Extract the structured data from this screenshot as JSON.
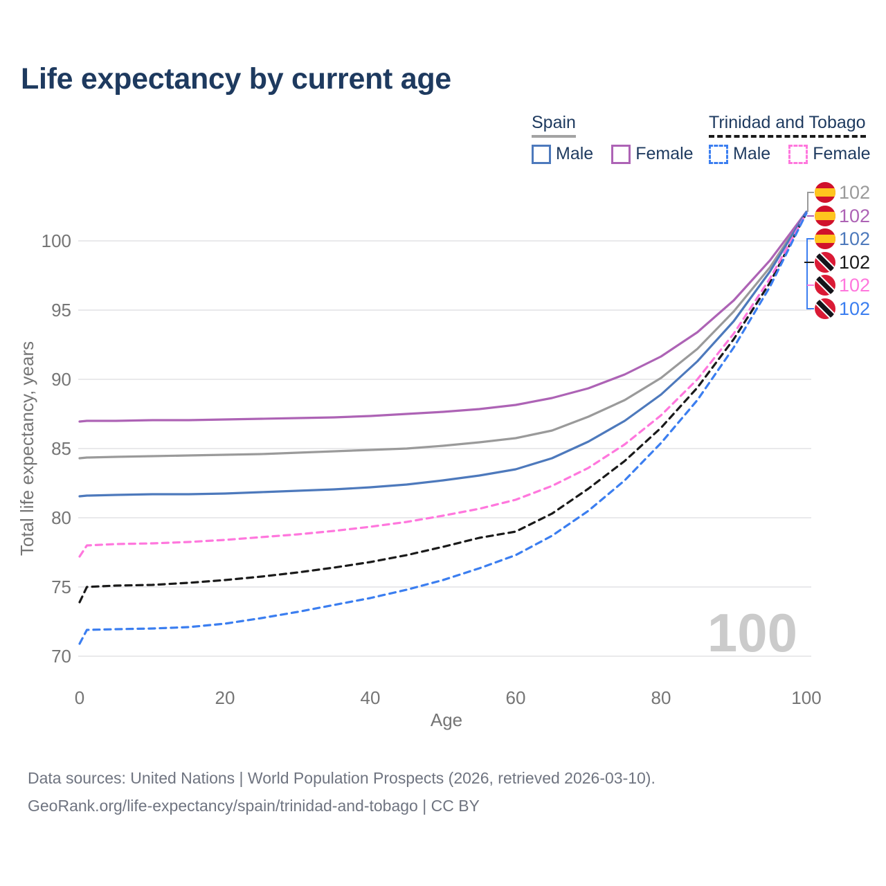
{
  "title": "Life expectancy by current age",
  "colors": {
    "title_text": "#1e3a5f",
    "axis_text": "#757575",
    "grid_line": "#e9e9eb",
    "watermark": "#cbcbcb",
    "source_text": "#6f7480",
    "spain_total": "#9a9a9a",
    "spain_female": "#ad63b5",
    "spain_male": "#4d79bc",
    "tt_total": "#1a1a1a",
    "tt_female": "#ff77dd",
    "tt_male": "#3b7ef0"
  },
  "legend": {
    "groups": [
      {
        "label": "Spain",
        "style": "solid",
        "underline_color": "#a3a3a3",
        "items": [
          {
            "label": "Male",
            "color": "#4d79bc",
            "dashed": false
          },
          {
            "label": "Female",
            "color": "#ad63b5",
            "dashed": false
          }
        ]
      },
      {
        "label": "Trinidad and Tobago",
        "style": "dashed",
        "underline_color": "#1a1a1a",
        "items": [
          {
            "label": "Male",
            "color": "#3b7ef0",
            "dashed": true
          },
          {
            "label": "Female",
            "color": "#ff77dd",
            "dashed": true
          }
        ]
      }
    ]
  },
  "watermark": "100",
  "chart_data": {
    "type": "line",
    "title": "Life expectancy by current age",
    "xlabel": "Age",
    "ylabel": "Total life expectancy, years",
    "xlim": [
      0,
      100
    ],
    "ylim": [
      69,
      103
    ],
    "xticks": [
      0,
      20,
      40,
      60,
      80,
      100
    ],
    "yticks": [
      70,
      75,
      80,
      85,
      90,
      95,
      100
    ],
    "grid": true,
    "legend_position": "top-right",
    "x": [
      0,
      1,
      5,
      10,
      15,
      20,
      25,
      30,
      35,
      40,
      45,
      50,
      55,
      60,
      65,
      70,
      75,
      80,
      85,
      90,
      95,
      100
    ],
    "series": [
      {
        "name": "Spain — Total",
        "color": "#9a9a9a",
        "dashed": false,
        "values": [
          84.3,
          84.35,
          84.4,
          84.45,
          84.5,
          84.55,
          84.6,
          84.7,
          84.8,
          84.9,
          85.0,
          85.2,
          85.45,
          85.75,
          86.3,
          87.3,
          88.5,
          90.1,
          92.2,
          94.9,
          98.1,
          102.1
        ]
      },
      {
        "name": "Spain — Female",
        "color": "#ad63b5",
        "dashed": false,
        "values": [
          86.95,
          87.0,
          87.0,
          87.05,
          87.05,
          87.1,
          87.15,
          87.2,
          87.25,
          87.35,
          87.5,
          87.65,
          87.85,
          88.15,
          88.65,
          89.35,
          90.35,
          91.65,
          93.4,
          95.7,
          98.6,
          102.1
        ]
      },
      {
        "name": "Spain — Male",
        "color": "#4d79bc",
        "dashed": false,
        "values": [
          81.55,
          81.6,
          81.65,
          81.7,
          81.7,
          81.75,
          81.85,
          81.95,
          82.05,
          82.2,
          82.4,
          82.7,
          83.05,
          83.5,
          84.3,
          85.5,
          87.0,
          88.9,
          91.3,
          94.2,
          97.8,
          102.1
        ]
      },
      {
        "name": "Trinidad and Tobago — Total",
        "color": "#1a1a1a",
        "dashed": true,
        "values": [
          73.9,
          75.0,
          75.1,
          75.15,
          75.3,
          75.5,
          75.75,
          76.05,
          76.4,
          76.8,
          77.3,
          77.9,
          78.55,
          79.0,
          80.3,
          82.1,
          84.1,
          86.5,
          89.4,
          92.9,
          97.0,
          102.0
        ]
      },
      {
        "name": "Trinidad and Tobago — Female",
        "color": "#ff77dd",
        "dashed": true,
        "values": [
          77.2,
          78.0,
          78.1,
          78.15,
          78.25,
          78.4,
          78.6,
          78.8,
          79.05,
          79.35,
          79.7,
          80.15,
          80.65,
          81.3,
          82.3,
          83.6,
          85.3,
          87.4,
          90.0,
          93.3,
          97.3,
          102.0
        ]
      },
      {
        "name": "Trinidad and Tobago — Male",
        "color": "#3b7ef0",
        "dashed": true,
        "values": [
          70.9,
          71.9,
          71.95,
          72.0,
          72.1,
          72.35,
          72.75,
          73.2,
          73.7,
          74.2,
          74.8,
          75.5,
          76.35,
          77.3,
          78.7,
          80.5,
          82.7,
          85.4,
          88.5,
          92.3,
          96.7,
          102.0
        ]
      }
    ],
    "end_labels": [
      {
        "flag": "spain",
        "label": "102",
        "color": "#9a9a9a"
      },
      {
        "flag": "spain",
        "label": "102",
        "color": "#ad63b5"
      },
      {
        "flag": "spain",
        "label": "102",
        "color": "#4d79bc"
      },
      {
        "flag": "tt",
        "label": "102",
        "color": "#1a1a1a"
      },
      {
        "flag": "tt",
        "label": "102",
        "color": "#ff77dd"
      },
      {
        "flag": "tt",
        "label": "102",
        "color": "#3b7ef0"
      }
    ],
    "flag_colors": {
      "spain_red": "#d0112b",
      "spain_yellow": "#ffc51e",
      "tt_red": "#da1a35",
      "tt_black": "#14141a",
      "tt_white": "#ffffff"
    }
  },
  "footer": {
    "source_line": "Data sources: United Nations | World Population Prospects (2026, retrieved 2026-03-10).",
    "attribution_line": "GeoRank.org/life-expectancy/spain/trinidad-and-tobago | CC BY"
  }
}
